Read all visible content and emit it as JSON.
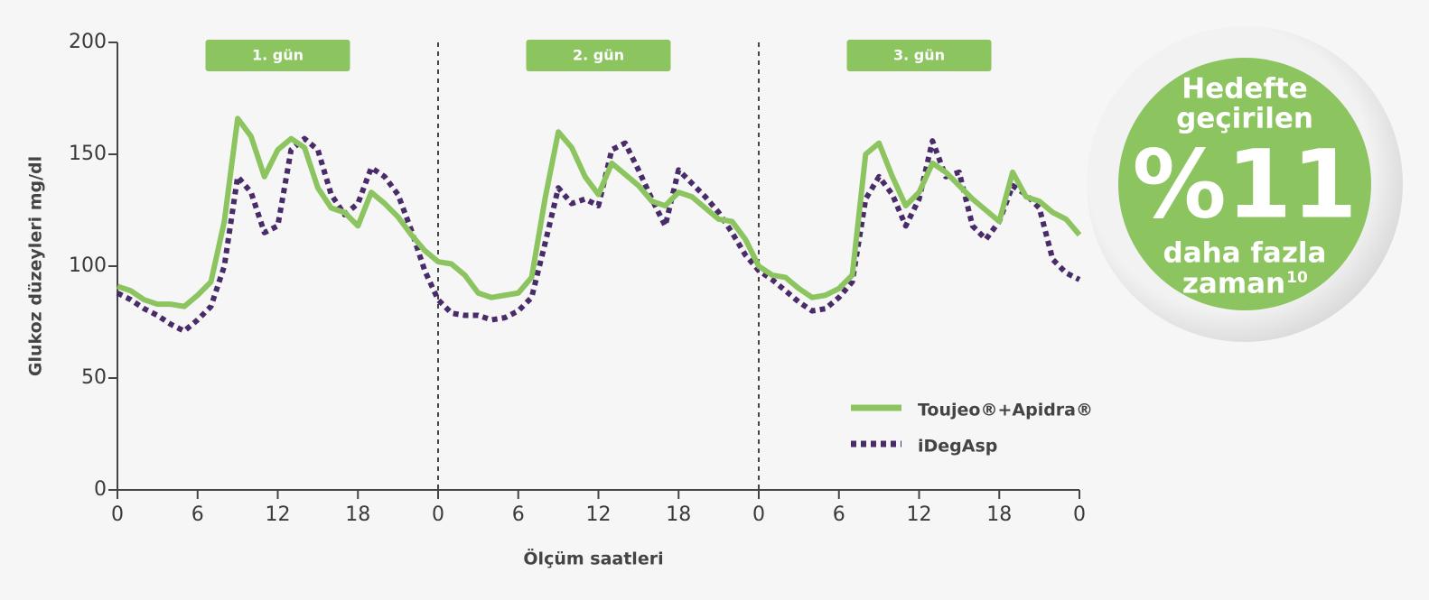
{
  "chart_data": {
    "type": "line",
    "y_label": "Glukoz düzeyleri mg/dl",
    "x_label": "Ölçüm saatleri",
    "day_labels": [
      "1. gün",
      "2. gün",
      "3. gün"
    ],
    "vlines": [
      24,
      48
    ],
    "x": [
      0,
      1,
      2,
      3,
      4,
      5,
      6,
      7,
      8,
      9,
      10,
      11,
      12,
      13,
      14,
      15,
      16,
      17,
      18,
      19,
      20,
      21,
      22,
      23,
      24,
      25,
      26,
      27,
      28,
      29,
      30,
      31,
      32,
      33,
      34,
      35,
      36,
      37,
      38,
      39,
      40,
      41,
      42,
      43,
      44,
      45,
      46,
      47,
      48,
      49,
      50,
      51,
      52,
      53,
      54,
      55,
      56,
      57,
      58,
      59,
      60,
      61,
      62,
      63,
      64,
      65,
      66,
      67,
      68,
      69,
      70,
      71,
      72
    ],
    "series": [
      {
        "name": "Toujeo®+Apidra®",
        "color": "#8cc460",
        "dash": false,
        "values": [
          91,
          89,
          85,
          83,
          83,
          82,
          87,
          93,
          120,
          166,
          158,
          140,
          152,
          157,
          153,
          135,
          126,
          124,
          118,
          133,
          128,
          122,
          114,
          107,
          102,
          101,
          96,
          88,
          86,
          87,
          88,
          95,
          130,
          160,
          153,
          140,
          132,
          146,
          141,
          136,
          129,
          127,
          133,
          131,
          126,
          121,
          120,
          112,
          100,
          96,
          95,
          90,
          86,
          87,
          90,
          96,
          150,
          155,
          140,
          127,
          133,
          146,
          142,
          136,
          130,
          125,
          120,
          142,
          131,
          129,
          124,
          121,
          114
        ]
      },
      {
        "name": "iDegAsp",
        "color": "#4a2b6a",
        "dash": true,
        "values": [
          88,
          85,
          81,
          78,
          74,
          71,
          76,
          82,
          100,
          140,
          133,
          115,
          118,
          152,
          157,
          152,
          132,
          123,
          128,
          144,
          140,
          132,
          116,
          98,
          85,
          79,
          78,
          78,
          76,
          77,
          80,
          86,
          110,
          135,
          128,
          130,
          127,
          152,
          155,
          143,
          130,
          118,
          143,
          137,
          131,
          124,
          115,
          105,
          98,
          94,
          89,
          84,
          80,
          81,
          86,
          93,
          130,
          140,
          132,
          118,
          130,
          156,
          140,
          142,
          118,
          112,
          120,
          136,
          132,
          126,
          103,
          97,
          94
        ]
      }
    ],
    "xlim": [
      0,
      72
    ],
    "ylim": [
      0,
      200
    ],
    "xticks": [
      0,
      6,
      12,
      18,
      {
        "value": 24,
        "label": "0"
      },
      {
        "value": 30,
        "label": "6"
      },
      {
        "value": 36,
        "label": "12"
      },
      {
        "value": 42,
        "label": "18"
      },
      {
        "value": 48,
        "label": "0"
      },
      {
        "value": 54,
        "label": "6"
      },
      {
        "value": 60,
        "label": "12"
      },
      {
        "value": 66,
        "label": "18"
      },
      {
        "value": 72,
        "label": "0"
      }
    ],
    "yticks": [
      0,
      50,
      100,
      150,
      200
    ],
    "badge": {
      "line1": "Hedefte",
      "line2": "geçirilen",
      "big": "%11",
      "line3": "daha fazla",
      "line4": "zaman",
      "ref": "10"
    }
  }
}
